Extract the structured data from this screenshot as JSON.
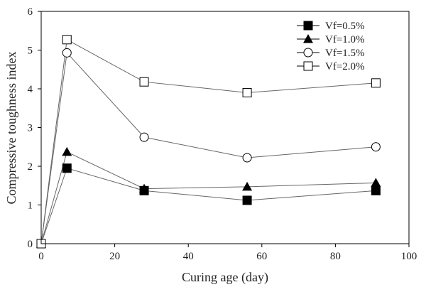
{
  "chart_data": {
    "type": "line",
    "title": "",
    "xlabel": "Curing age (day)",
    "ylabel": "Compressive toughness index",
    "xlim": [
      0,
      100
    ],
    "ylim": [
      0,
      6
    ],
    "xticks": [
      0,
      20,
      40,
      60,
      80,
      100
    ],
    "yticks": [
      0,
      1,
      2,
      3,
      4,
      5,
      6
    ],
    "grid": false,
    "legend_position": "top-right",
    "x": [
      0,
      7,
      28,
      56,
      91
    ],
    "series": [
      {
        "name": "Vf=0.5%",
        "marker": "square-filled",
        "values": [
          0,
          1.95,
          1.37,
          1.12,
          1.37
        ]
      },
      {
        "name": "Vf=1.0%",
        "marker": "triangle-filled",
        "values": [
          0,
          2.37,
          1.42,
          1.47,
          1.57
        ]
      },
      {
        "name": "Vf=1.5%",
        "marker": "circle-open",
        "values": [
          0,
          4.93,
          2.75,
          2.22,
          2.5
        ]
      },
      {
        "name": "Vf=2.0%",
        "marker": "square-open",
        "values": [
          0,
          5.27,
          4.18,
          3.9,
          4.15
        ]
      }
    ],
    "colors": {
      "marker": "#000000",
      "line": "#666666",
      "axis": "#000000"
    }
  }
}
